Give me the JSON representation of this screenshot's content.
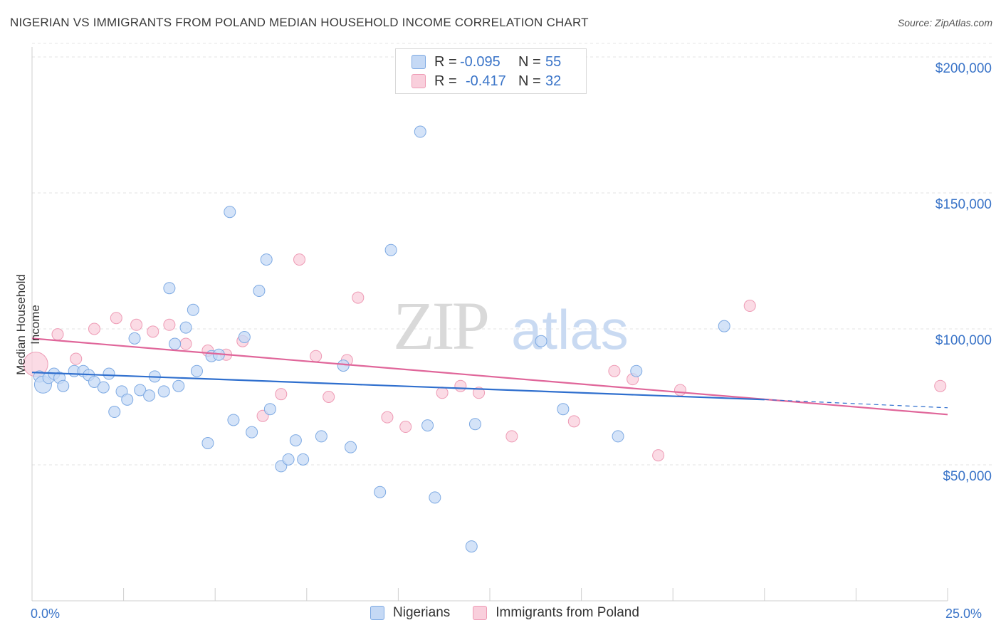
{
  "title": "NIGERIAN VS IMMIGRANTS FROM POLAND MEDIAN HOUSEHOLD INCOME CORRELATION CHART",
  "source": "Source: ZipAtlas.com",
  "watermark": "ZIPatlas",
  "legend": {
    "rows": [
      {
        "r_label": "R =",
        "r_value": "-0.095",
        "n_label": "N =",
        "n_value": "55"
      },
      {
        "r_label": "R =",
        "r_value": "-0.417",
        "n_label": "N =",
        "n_value": "32"
      }
    ]
  },
  "bottom_legend": [
    "Nigerians",
    "Immigrants from Poland"
  ],
  "colors": {
    "blue_fill": "#c5d9f5",
    "blue_stroke": "#7eaae3",
    "blue_line": "#2f6fce",
    "pink_fill": "#f9cfdc",
    "pink_stroke": "#ee9bb5",
    "pink_line": "#e0669a",
    "tick_text": "#3a74c8",
    "grid": "#e3e3e3"
  },
  "chart_data": {
    "type": "scatter",
    "ylabel": "Median Household Income",
    "x_tick_labels": [
      "0.0%",
      "25.0%"
    ],
    "y_tick_labels": [
      "$50,000",
      "$100,000",
      "$150,000",
      "$200,000"
    ],
    "y_ticks": [
      50000,
      100000,
      150000,
      200000
    ],
    "xlim": [
      0,
      25
    ],
    "ylim": [
      0,
      205000
    ],
    "grid": true,
    "legend_position": "top-center",
    "series": [
      {
        "name": "Nigerians",
        "color": "#c5d9f5",
        "points": [
          [
            0.2,
            82500
          ],
          [
            0.3,
            79500
          ],
          [
            0.45,
            82000
          ],
          [
            0.6,
            83500
          ],
          [
            0.75,
            82000
          ],
          [
            0.85,
            79000
          ],
          [
            1.15,
            84500
          ],
          [
            1.4,
            84500
          ],
          [
            1.55,
            83000
          ],
          [
            1.7,
            80500
          ],
          [
            1.95,
            78500
          ],
          [
            2.1,
            83500
          ],
          [
            2.25,
            69500
          ],
          [
            2.45,
            77000
          ],
          [
            2.6,
            74000
          ],
          [
            2.8,
            96500
          ],
          [
            2.95,
            77500
          ],
          [
            3.2,
            75500
          ],
          [
            3.35,
            82500
          ],
          [
            3.6,
            77000
          ],
          [
            3.75,
            115000
          ],
          [
            3.9,
            94500
          ],
          [
            4.0,
            79000
          ],
          [
            4.2,
            100500
          ],
          [
            4.4,
            107000
          ],
          [
            4.5,
            84500
          ],
          [
            4.8,
            58000
          ],
          [
            4.9,
            90000
          ],
          [
            5.1,
            90500
          ],
          [
            5.4,
            143000
          ],
          [
            5.5,
            66500
          ],
          [
            5.8,
            97000
          ],
          [
            6.0,
            62000
          ],
          [
            6.2,
            114000
          ],
          [
            6.4,
            125500
          ],
          [
            6.5,
            70500
          ],
          [
            6.8,
            49500
          ],
          [
            7.0,
            52000
          ],
          [
            7.2,
            59000
          ],
          [
            7.4,
            52000
          ],
          [
            7.9,
            60500
          ],
          [
            8.5,
            86500
          ],
          [
            8.7,
            56500
          ],
          [
            9.5,
            40000
          ],
          [
            9.8,
            129000
          ],
          [
            10.6,
            172500
          ],
          [
            10.8,
            64500
          ],
          [
            11.0,
            38000
          ],
          [
            12.0,
            20000
          ],
          [
            12.1,
            65000
          ],
          [
            13.9,
            95500
          ],
          [
            14.5,
            70500
          ],
          [
            16.0,
            60500
          ],
          [
            16.5,
            84500
          ],
          [
            18.9,
            101000
          ]
        ],
        "trend": {
          "x": [
            0,
            20
          ],
          "y": [
            84000,
            74000
          ]
        },
        "trend_dashed": {
          "x": [
            20,
            25
          ],
          "y": [
            74000,
            71000
          ]
        }
      },
      {
        "name": "Immigrants from Poland",
        "color": "#f9cfdc",
        "points": [
          [
            0.1,
            87000
          ],
          [
            0.7,
            98000
          ],
          [
            1.2,
            89000
          ],
          [
            1.7,
            100000
          ],
          [
            2.3,
            104000
          ],
          [
            2.85,
            101500
          ],
          [
            3.3,
            99000
          ],
          [
            3.75,
            101500
          ],
          [
            4.2,
            94500
          ],
          [
            4.8,
            92000
          ],
          [
            5.3,
            90500
          ],
          [
            5.75,
            95500
          ],
          [
            6.3,
            68000
          ],
          [
            6.8,
            76000
          ],
          [
            7.3,
            125500
          ],
          [
            7.75,
            90000
          ],
          [
            8.1,
            75000
          ],
          [
            8.6,
            88500
          ],
          [
            8.9,
            111500
          ],
          [
            9.7,
            67500
          ],
          [
            10.2,
            64000
          ],
          [
            11.2,
            76500
          ],
          [
            11.7,
            79000
          ],
          [
            12.2,
            76500
          ],
          [
            13.1,
            60500
          ],
          [
            14.8,
            66000
          ],
          [
            15.9,
            84500
          ],
          [
            16.4,
            81500
          ],
          [
            17.1,
            53500
          ],
          [
            17.7,
            77500
          ],
          [
            19.6,
            108500
          ],
          [
            24.8,
            79000
          ]
        ],
        "trend": {
          "x": [
            0,
            25
          ],
          "y": [
            96500,
            68500
          ]
        }
      }
    ]
  }
}
